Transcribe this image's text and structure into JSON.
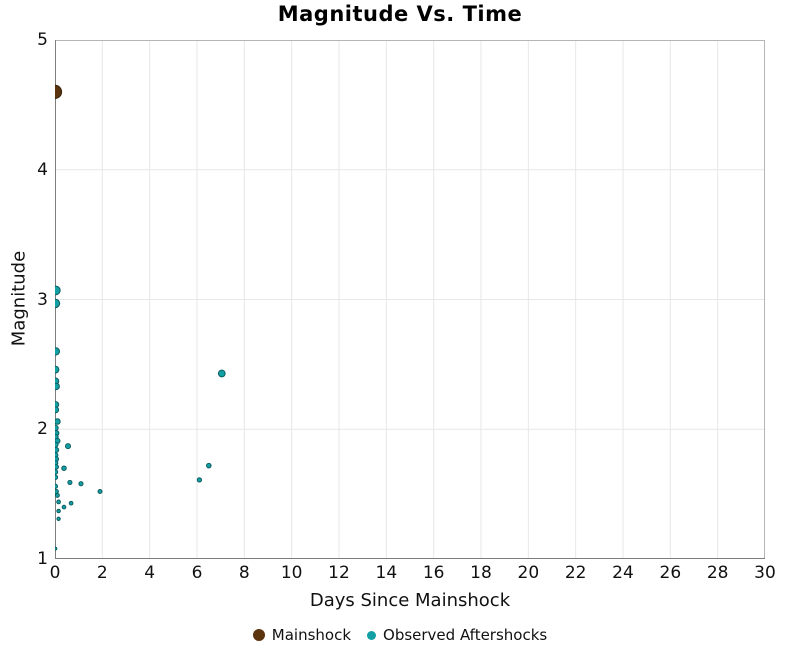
{
  "chart_data": {
    "type": "scatter",
    "title": "Magnitude Vs. Time",
    "xlabel": "Days Since Mainshock",
    "ylabel": "Magnitude",
    "xlim": [
      0,
      30
    ],
    "ylim": [
      1,
      5
    ],
    "xticks": [
      0,
      2,
      4,
      6,
      8,
      10,
      12,
      14,
      16,
      18,
      20,
      22,
      24,
      26,
      28,
      30
    ],
    "yticks": [
      1,
      2,
      3,
      4,
      5
    ],
    "grid": true,
    "legend_position": "bottom-center",
    "panel_border_color": "#b5b5b5",
    "axis_line_color": "#7d7d7d",
    "grid_color": "#e7e7e7",
    "marker_size_rule": "radius_px = 1.2 + (magnitude - 1) * 1.5",
    "series": [
      {
        "name": "Mainshock",
        "color": "#5b340d",
        "edge": "#33200a",
        "points": [
          [
            0.0,
            4.6
          ]
        ]
      },
      {
        "name": "Observed Aftershocks",
        "color": "#13a0a5",
        "edge": "#0d5c5e",
        "points": [
          [
            0.04,
            3.07
          ],
          [
            0.02,
            2.97
          ],
          [
            0.04,
            2.6
          ],
          [
            0.02,
            2.46
          ],
          [
            0.02,
            2.37
          ],
          [
            0.05,
            2.33
          ],
          [
            0.03,
            2.19
          ],
          [
            0.03,
            2.15
          ],
          [
            0.1,
            2.06
          ],
          [
            0.02,
            2.01
          ],
          [
            0.05,
            1.97
          ],
          [
            0.02,
            1.94
          ],
          [
            0.1,
            1.91
          ],
          [
            0.02,
            1.88
          ],
          [
            0.55,
            1.87
          ],
          [
            0.05,
            1.84
          ],
          [
            0.02,
            1.8
          ],
          [
            0.05,
            1.77
          ],
          [
            0.02,
            1.74
          ],
          [
            0.05,
            1.71
          ],
          [
            0.38,
            1.7
          ],
          [
            0.02,
            1.67
          ],
          [
            0.02,
            1.63
          ],
          [
            0.63,
            1.59
          ],
          [
            1.1,
            1.58
          ],
          [
            0.02,
            1.56
          ],
          [
            0.06,
            1.52
          ],
          [
            1.9,
            1.52
          ],
          [
            0.1,
            1.49
          ],
          [
            0.15,
            1.44
          ],
          [
            0.68,
            1.43
          ],
          [
            0.38,
            1.4
          ],
          [
            0.15,
            1.37
          ],
          [
            0.15,
            1.31
          ],
          [
            0.02,
            1.08
          ],
          [
            6.1,
            1.61
          ],
          [
            6.5,
            1.72
          ],
          [
            7.05,
            2.43
          ]
        ]
      }
    ]
  }
}
